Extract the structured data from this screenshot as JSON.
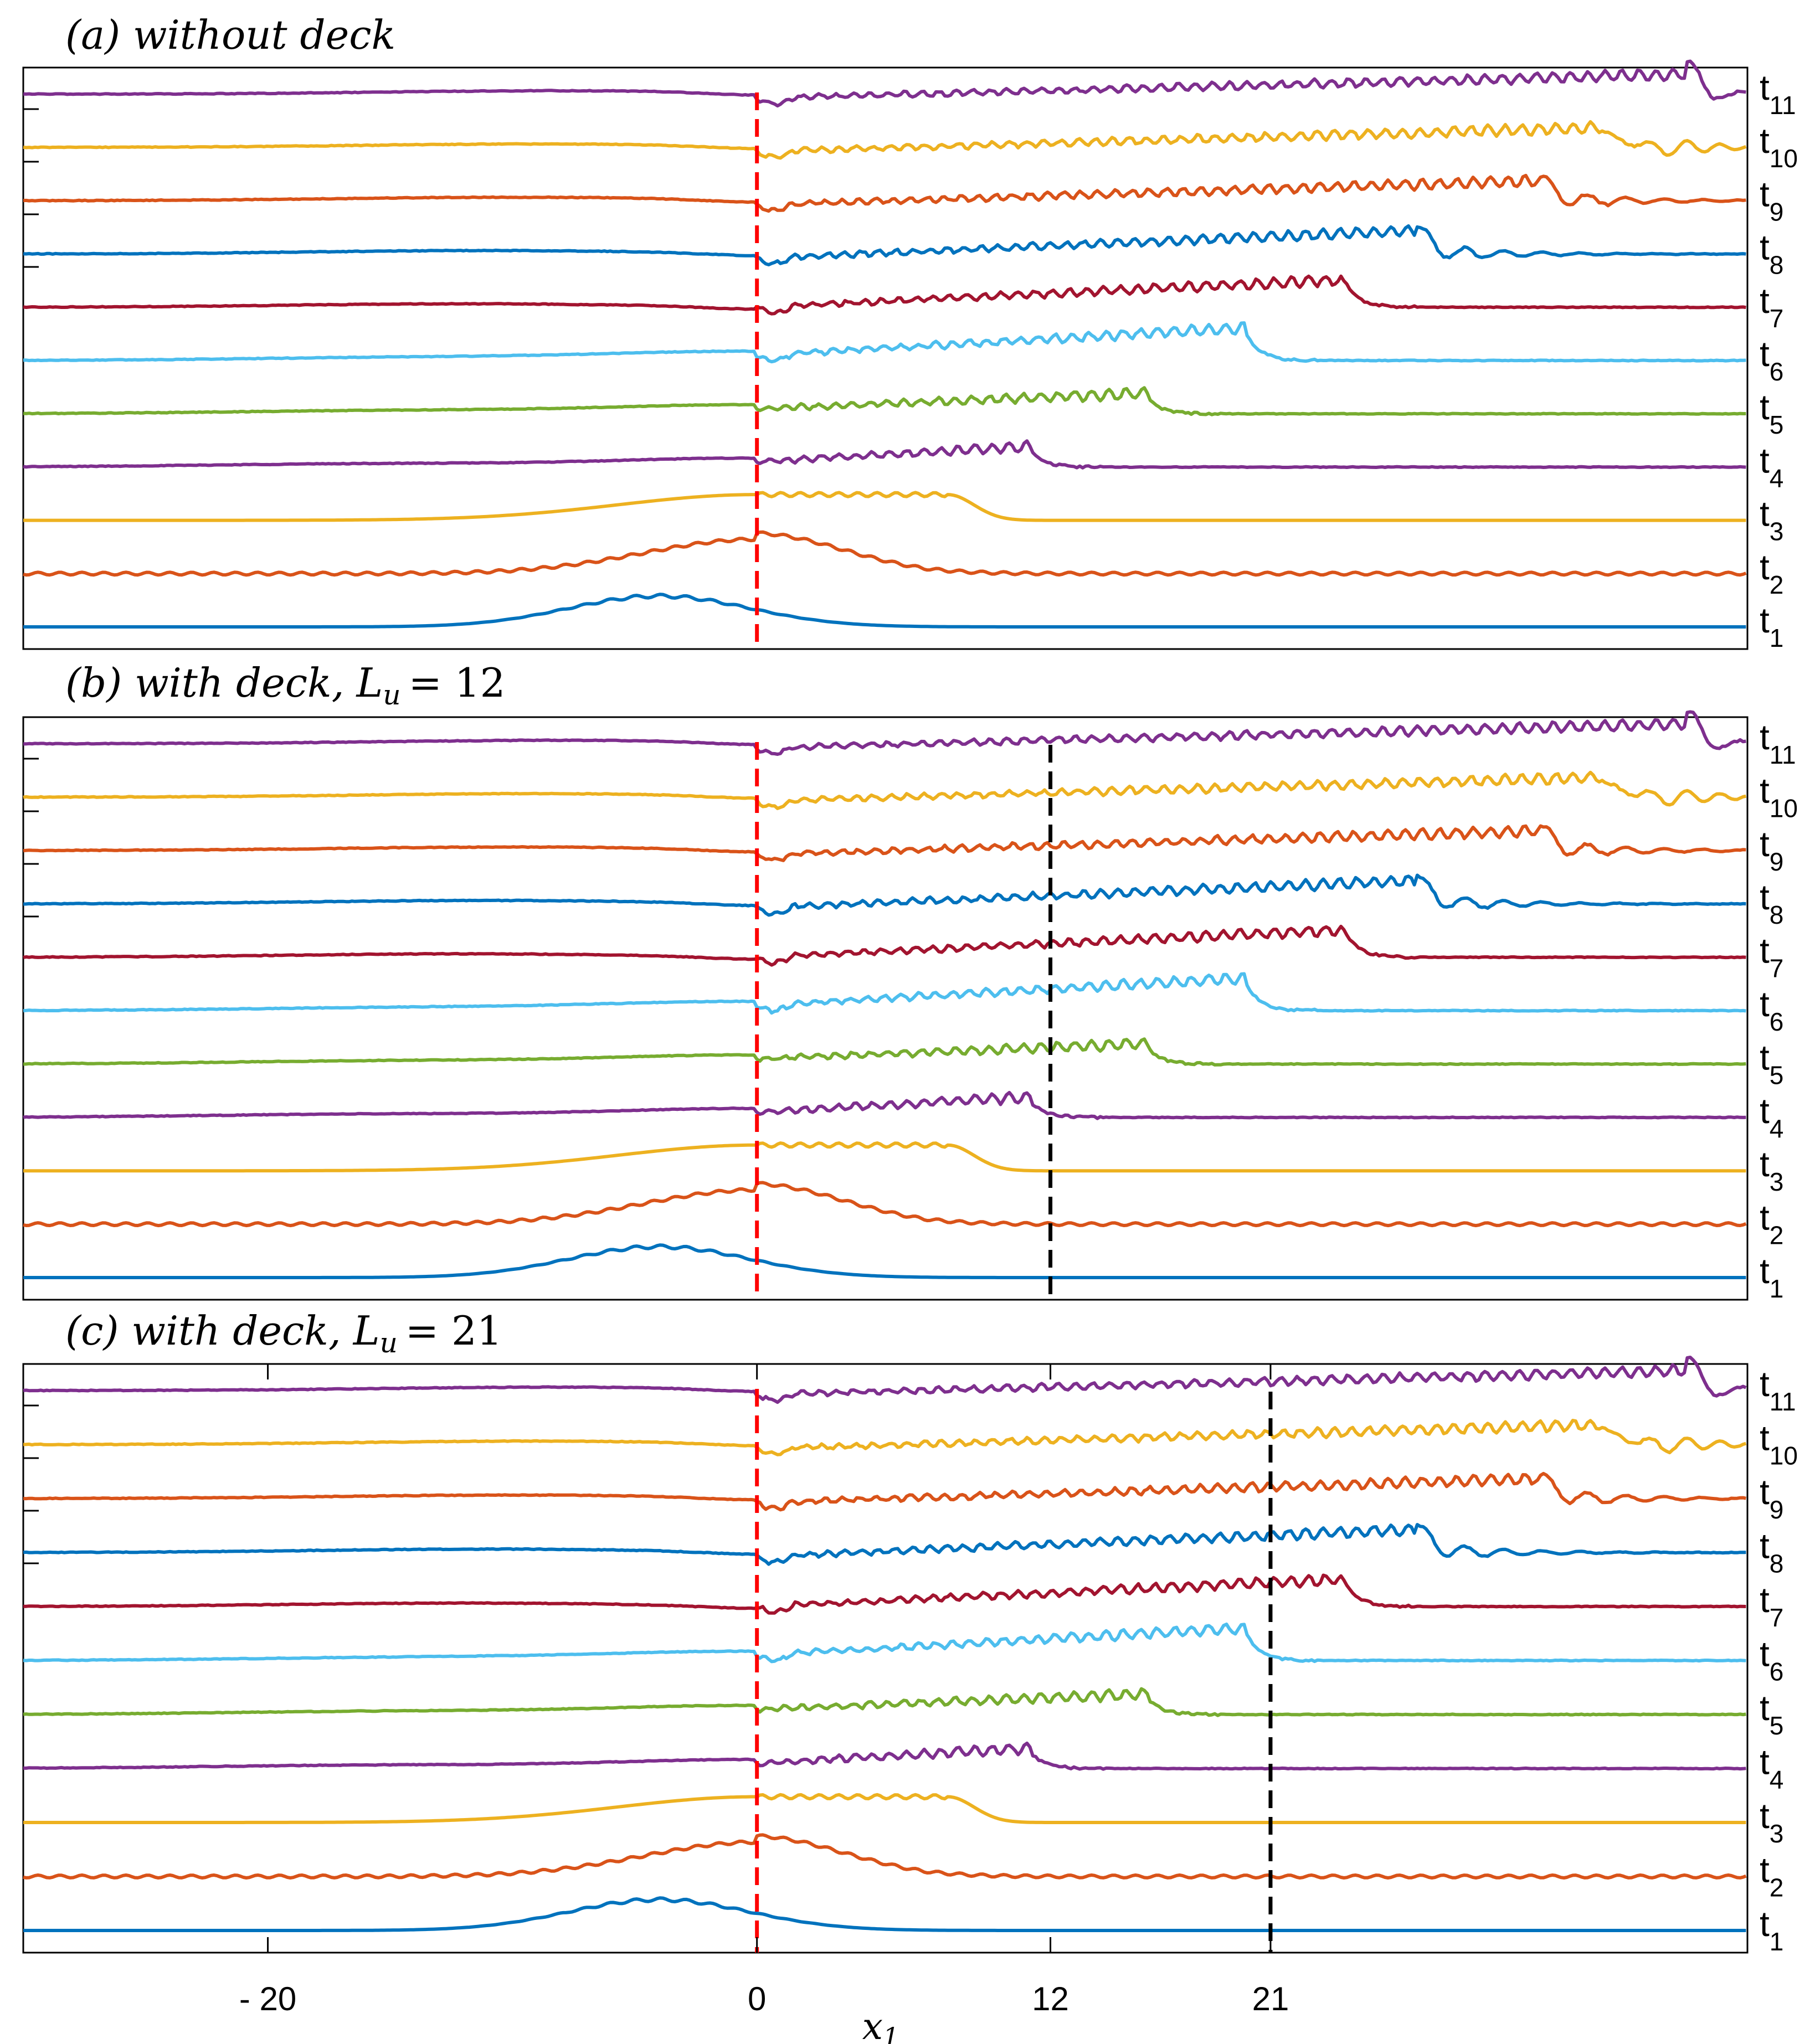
{
  "chart_data": {
    "type": "line",
    "description_units": "waterfall of free-surface profiles, each time-step offset vertically",
    "xlabel": "x",
    "xlabel_subscript": "1",
    "xlim": [
      -30,
      40.5
    ],
    "x_ticks": [
      {
        "value": -20,
        "label": "- 20"
      },
      {
        "value": 0,
        "label": "0"
      },
      {
        "value": 12,
        "label": "12"
      },
      {
        "value": 21,
        "label": "21"
      }
    ],
    "series_colors": [
      "#0072bd",
      "#d95319",
      "#edb120",
      "#7e2f8e",
      "#77ac30",
      "#4dbeee",
      "#a2142f",
      "#0072bd",
      "#d95319",
      "#edb120",
      "#7e2f8e"
    ],
    "labels": [
      {
        "base": "t",
        "sub": "1"
      },
      {
        "base": "t",
        "sub": "2"
      },
      {
        "base": "t",
        "sub": "3"
      },
      {
        "base": "t",
        "sub": "4"
      },
      {
        "base": "t",
        "sub": "5"
      },
      {
        "base": "t",
        "sub": "6"
      },
      {
        "base": "t",
        "sub": "7"
      },
      {
        "base": "t",
        "sub": "8"
      },
      {
        "base": "t",
        "sub": "9"
      },
      {
        "base": "t",
        "sub": "10"
      },
      {
        "base": "t",
        "sub": "11"
      }
    ],
    "red_line_x": 0,
    "red_line_color": "#ff0000",
    "deck_line_color": "#000000",
    "fronts": [
      5.5,
      6.8,
      7.8,
      11.2,
      16.0,
      20.0,
      24.0,
      27.0,
      32.0,
      34.5,
      38.0
    ],
    "panels": [
      {
        "title_main": "(a) without deck",
        "title_lu": "",
        "deck_x": null,
        "show_xticks": false
      },
      {
        "title_main": "(b) with deck,",
        "title_lu": "L",
        "title_lu_sub": "u",
        "title_lu_value": "= 12",
        "deck_x": 12,
        "show_xticks": false
      },
      {
        "title_main": "(c) with deck,",
        "title_lu": "L",
        "title_lu_sub": "u",
        "title_lu_value": "= 21",
        "deck_x": 21,
        "show_xticks": true
      }
    ]
  }
}
